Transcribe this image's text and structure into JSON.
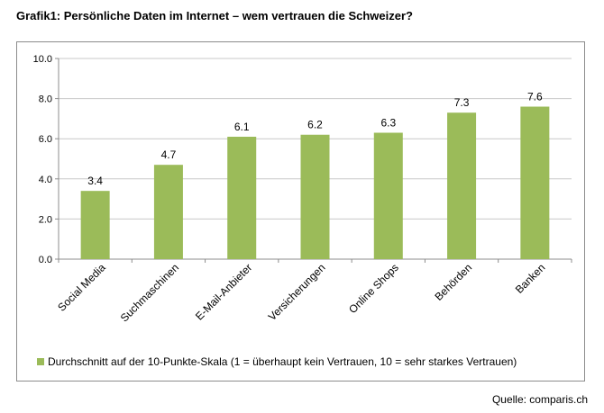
{
  "title": "Grafik1: Persönliche Daten im Internet – wem vertrauen die Schweizer?",
  "source": "Quelle: comparis.ch",
  "colors": {
    "bar": "#9bbb59",
    "axis": "#8c8c8c",
    "grid": "#c8c8c8"
  },
  "chart_data": {
    "type": "bar",
    "categories": [
      "Social Media",
      "Suchmaschinen",
      "E-Mail-Anbieter",
      "Versicherungen",
      "Online Shops",
      "Behörden",
      "Banken"
    ],
    "series": [
      {
        "name": "Durchschnitt auf der 10-Punkte-Skala (1 = überhaupt kein Vertrauen,   10 = sehr starkes Vertrauen)",
        "values": [
          3.4,
          4.7,
          6.1,
          6.2,
          6.3,
          7.3,
          7.6
        ]
      }
    ],
    "data_labels": [
      "3.4",
      "4.7",
      "6.1",
      "6.2",
      "6.3",
      "7.3",
      "7.6"
    ],
    "yticks": [
      "0.0",
      "2.0",
      "4.0",
      "6.0",
      "8.0",
      "10.0"
    ],
    "ylim": [
      0,
      10
    ],
    "xlabel": "",
    "ylabel": "",
    "grid": true,
    "legend_position": "bottom"
  }
}
